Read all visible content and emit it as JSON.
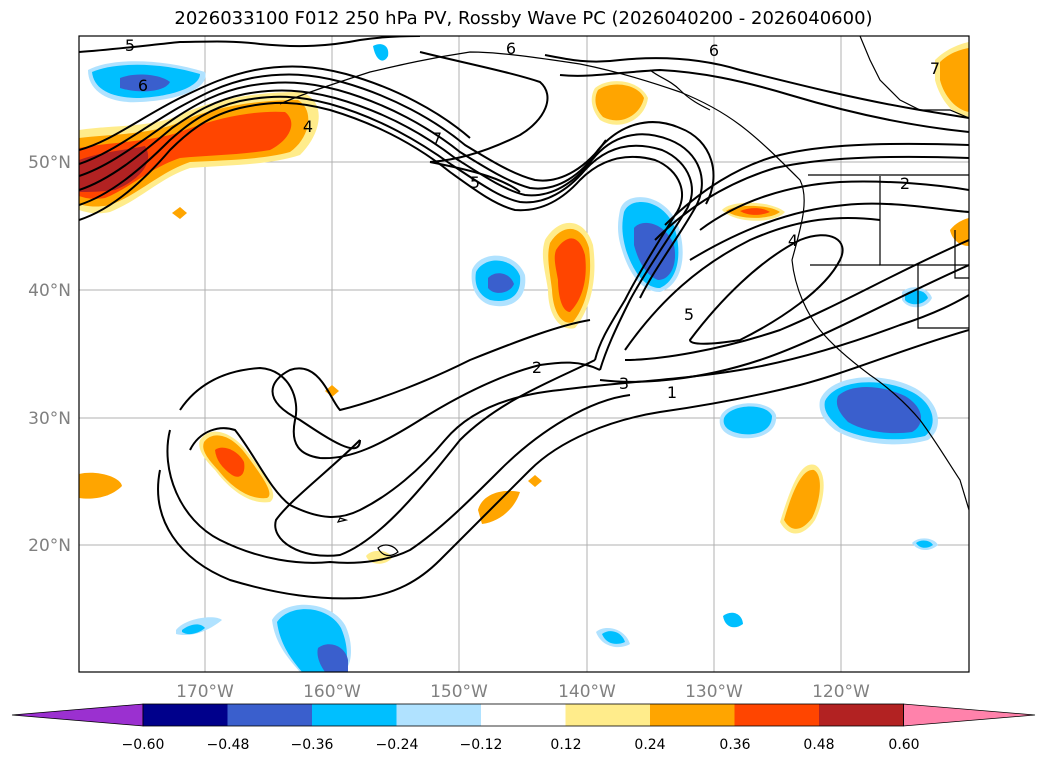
{
  "title": "2026033100 F012 250 hPa PV, Rossby Wave PC (2026040200 - 2026040600)",
  "lat_labels": [
    "50°N",
    "40°N",
    "30°N",
    "20°N"
  ],
  "lon_labels": [
    "170°W",
    "160°W",
    "150°W",
    "140°W",
    "130°W",
    "120°W"
  ],
  "colorbar": {
    "ticks": [
      "−0.60",
      "−0.48",
      "−0.36",
      "−0.24",
      "−0.12",
      "0.12",
      "0.24",
      "0.36",
      "0.48",
      "0.60"
    ],
    "colors": [
      "#9b30d0",
      "#00008b",
      "#3a5fcd",
      "#00bfff",
      "#b0e2ff",
      "#ffffff",
      "#ffec8b",
      "#ffa500",
      "#ff4500",
      "#b22222",
      "#ff82ab"
    ]
  },
  "contour_labels": [
    "5",
    "6",
    "6",
    "6",
    "7",
    "4",
    "7",
    "5",
    "2",
    "4",
    "5",
    "2",
    "3",
    "1"
  ]
}
